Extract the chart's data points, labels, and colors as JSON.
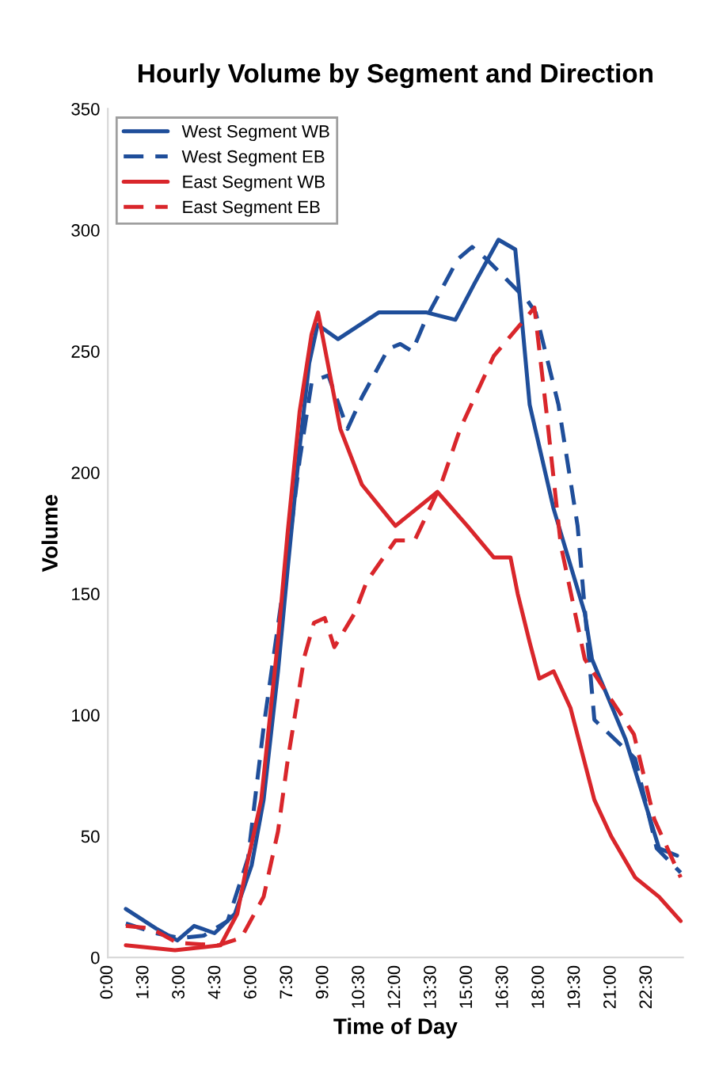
{
  "chart_data": {
    "type": "line",
    "title": "Hourly Volume by Segment and Direction",
    "xlabel": "Time of Day",
    "ylabel": "Volume",
    "xlim": [
      0,
      24
    ],
    "xticks": [
      {
        "value": 0,
        "label": "0:00"
      },
      {
        "value": 1.5,
        "label": "1:30"
      },
      {
        "value": 3,
        "label": "3:00"
      },
      {
        "value": 4.5,
        "label": "4:30"
      },
      {
        "value": 6,
        "label": "6:00"
      },
      {
        "value": 7.5,
        "label": "7:30"
      },
      {
        "value": 9,
        "label": "9:00"
      },
      {
        "value": 10.5,
        "label": "10:30"
      },
      {
        "value": 12,
        "label": "12:00"
      },
      {
        "value": 13.5,
        "label": "13:30"
      },
      {
        "value": 15,
        "label": "15:00"
      },
      {
        "value": 16.5,
        "label": "16:30"
      },
      {
        "value": 18,
        "label": "18:00"
      },
      {
        "value": 19.5,
        "label": "19:30"
      },
      {
        "value": 21,
        "label": "21:00"
      },
      {
        "value": 22.5,
        "label": "22:30"
      }
    ],
    "ylim": [
      0,
      350
    ],
    "yticks": [
      0,
      50,
      100,
      150,
      200,
      250,
      300,
      350
    ],
    "grid": false,
    "legend": "top left",
    "marker": "none",
    "series": [
      {
        "name": "West Segment WB",
        "color": "#1f4e9a",
        "line_style": "solid",
        "x": [
          0.75,
          2,
          2.9,
          3.6,
          4.45,
          5.3,
          6,
          6.5,
          7.1,
          7.5,
          8,
          8.4,
          8.75,
          9.6,
          11.3,
          13.3,
          14.5,
          15.3,
          16.3,
          17,
          17.2,
          17.6,
          18.6,
          19.9,
          20.2,
          21.6,
          23,
          23.75
        ],
        "values": [
          20,
          12,
          7,
          13,
          10,
          18,
          38,
          65,
          118,
          160,
          210,
          245,
          261,
          255,
          266,
          266,
          263,
          278,
          296,
          292,
          271,
          228,
          185,
          142,
          123,
          90,
          45,
          42
        ]
      },
      {
        "name": "West Segment EB",
        "color": "#1f4e9a",
        "line_style": "dashed",
        "x": [
          0.75,
          2,
          3,
          4,
          5,
          5.85,
          6.5,
          7,
          7.5,
          8,
          8.5,
          8.9,
          9.2,
          10,
          10.6,
          11.7,
          12.2,
          12.7,
          13.3,
          14.6,
          15.2,
          15.8,
          17.5,
          17.85,
          18.8,
          19.6,
          20.3,
          22,
          22.9,
          23.9
        ],
        "values": [
          14,
          10,
          8,
          9,
          15,
          41,
          95,
          130,
          165,
          205,
          237,
          239,
          240,
          218,
          231,
          251,
          253,
          250,
          264,
          288,
          293,
          288,
          271,
          266,
          228,
          178,
          98,
          82,
          45,
          35
        ]
      },
      {
        "name": "East Segment WB",
        "color": "#d9262b",
        "line_style": "solid",
        "x": [
          0.75,
          2.8,
          4.7,
          5.4,
          5.8,
          6.4,
          7.1,
          7.5,
          8,
          8.5,
          8.77,
          9.7,
          10.6,
          12,
          13.75,
          15,
          16.1,
          16.8,
          17.1,
          17.6,
          18,
          18.6,
          19.3,
          20.3,
          21,
          22,
          23,
          23.9
        ],
        "values": [
          5,
          3,
          5,
          18,
          38,
          65,
          131,
          175,
          225,
          257,
          266,
          218,
          195,
          178,
          192,
          178,
          165,
          165,
          150,
          130,
          115,
          118,
          103,
          65,
          50,
          33,
          25,
          15
        ]
      },
      {
        "name": "East Segment EB",
        "color": "#d9262b",
        "line_style": "dashed",
        "x": [
          0.75,
          1.8,
          2.9,
          4.6,
          5.56,
          6.5,
          7.1,
          7.5,
          8.2,
          8.6,
          9.05,
          9.45,
          10.3,
          10.8,
          12,
          12.8,
          13.9,
          14.7,
          16.1,
          17.8,
          18.3,
          18.9,
          19.9,
          21.95,
          22.8,
          23.9
        ],
        "values": [
          13,
          12,
          6,
          5,
          8,
          25,
          52,
          81,
          124,
          138,
          140,
          128,
          142,
          155,
          172,
          172,
          195,
          218,
          248,
          268,
          225,
          170,
          123,
          92,
          57,
          33
        ]
      }
    ]
  }
}
